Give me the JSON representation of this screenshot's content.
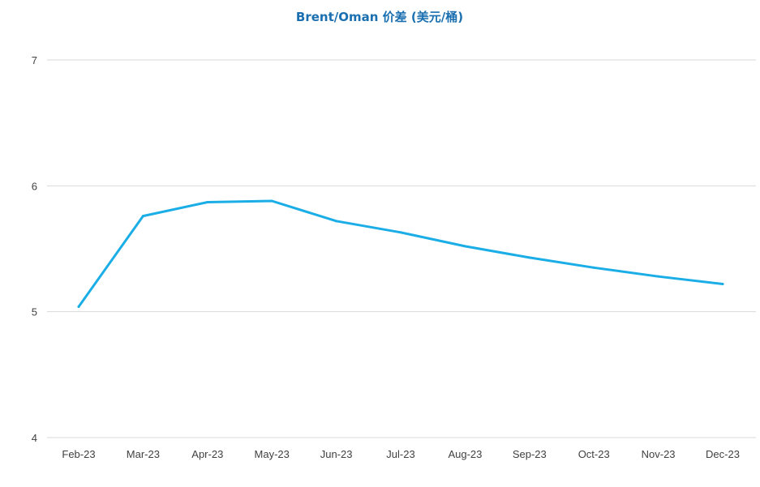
{
  "chart_data": {
    "type": "line",
    "title": "Brent/Oman 价差 (美元/桶)",
    "xlabel": "",
    "ylabel": "",
    "categories": [
      "Feb-23",
      "Mar-23",
      "Apr-23",
      "May-23",
      "Jun-23",
      "Jul-23",
      "Aug-23",
      "Sep-23",
      "Oct-23",
      "Nov-23",
      "Dec-23"
    ],
    "series": [
      {
        "values": [
          5.04,
          5.76,
          5.87,
          5.88,
          5.72,
          5.63,
          5.52,
          5.43,
          5.35,
          5.28,
          5.22
        ]
      }
    ],
    "ylim": [
      4,
      7
    ],
    "yticks": [
      4,
      5,
      6,
      7
    ],
    "grid": true,
    "legend": "none"
  },
  "colors": {
    "title": "#1a6fb0",
    "line": "#1aade6",
    "grid": "#d9d9d9",
    "tick_text": "#404040"
  }
}
